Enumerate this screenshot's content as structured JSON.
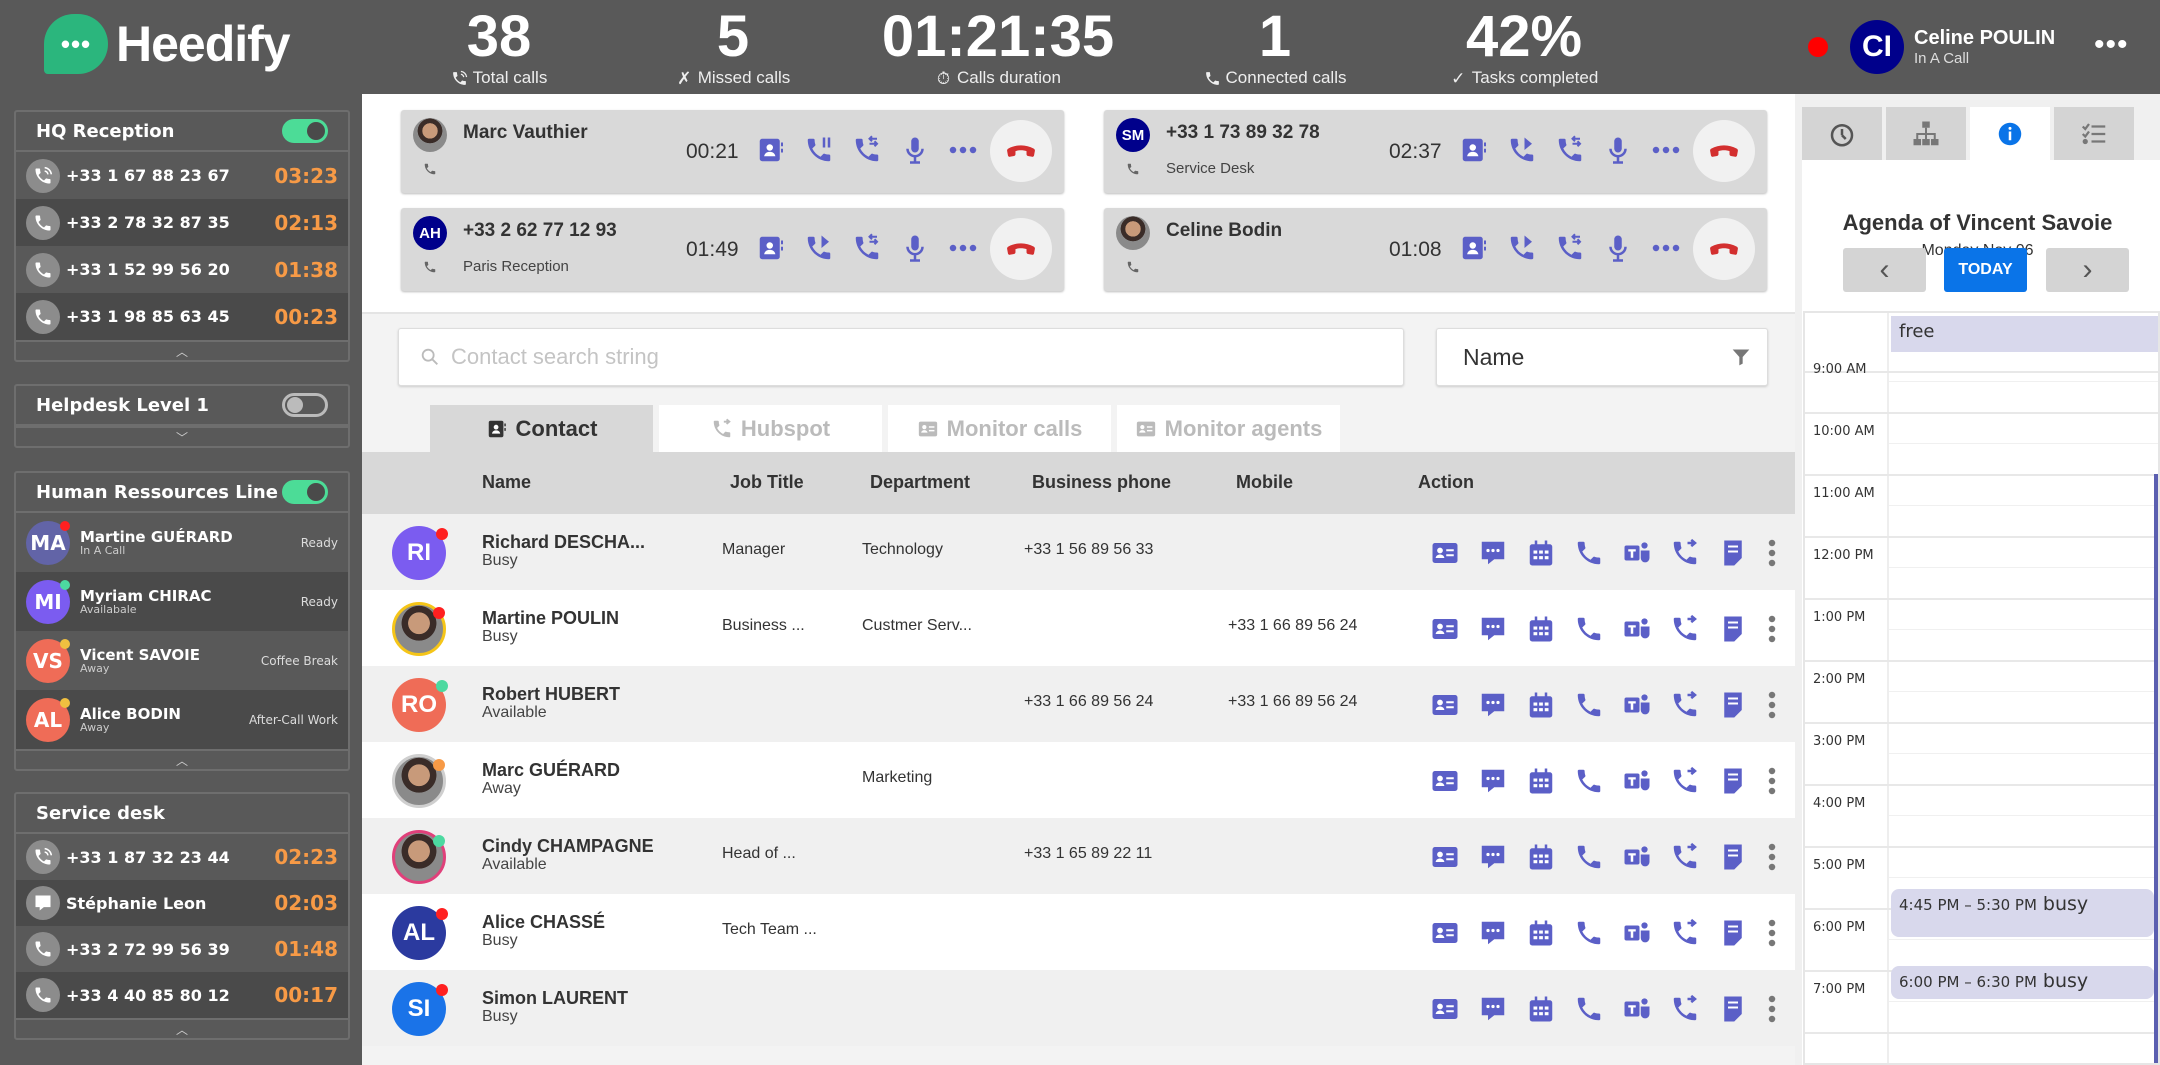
{
  "header": {
    "logo_text": "Heedify",
    "stats": [
      {
        "value": "38",
        "label": "Total calls",
        "icon": "phone-ring-icon"
      },
      {
        "value": "5",
        "label": "Missed calls",
        "icon": "missed-call-icon"
      },
      {
        "value": "01:21:35",
        "label": "Calls duration",
        "icon": "timer-icon"
      },
      {
        "value": "1",
        "label": "Connected calls",
        "icon": "phone-connected-icon"
      },
      {
        "value": "42%",
        "label": "Tasks completed",
        "icon": "check-icon"
      }
    ],
    "user": {
      "initials": "CI",
      "name": "Celine POULIN",
      "status": "In A Call",
      "status_color": "#ff0000",
      "more": "•••"
    }
  },
  "queues": [
    {
      "title": "HQ Reception",
      "toggle": "on",
      "type": "calls",
      "expanded": true,
      "items": [
        {
          "icon": "phone-ring",
          "label": "+33 1 67 88 23 67",
          "time": "03:23"
        },
        {
          "icon": "phone",
          "label": "+33 2 78 32 87 35",
          "time": "02:13"
        },
        {
          "icon": "phone",
          "label": "+33 1 52 99 56 20",
          "time": "01:38"
        },
        {
          "icon": "phone",
          "label": "+33 1 98 85 63 45",
          "time": "00:23"
        }
      ]
    },
    {
      "title": "Helpdesk Level 1",
      "toggle": "off",
      "type": "calls",
      "expanded": false,
      "items": []
    },
    {
      "title": "Human Ressources Line",
      "toggle": "on",
      "type": "agents",
      "expanded": true,
      "items": [
        {
          "initials": "MA",
          "name": "Martine GUÉRARD",
          "status": "In A Call",
          "state": "Ready",
          "color": "#6264a7",
          "dot": "#ff2020"
        },
        {
          "initials": "MI",
          "name": "Myriam CHIRAC",
          "status": "Availabale",
          "state": "Ready",
          "color": "#7b5cf0",
          "dot": "#4cd9a0"
        },
        {
          "initials": "VS",
          "name": "Vicent SAVOIE",
          "status": "Away",
          "state": "Coffee Break",
          "color": "#ef6c57",
          "dot": "#f0c040"
        },
        {
          "initials": "AL",
          "name": "Alice BODIN",
          "status": "Away",
          "state": "After-Call Work",
          "color": "#ef6c57",
          "dot": "#f0c040"
        }
      ]
    },
    {
      "title": "Service desk",
      "toggle": "none",
      "type": "calls",
      "expanded": true,
      "items": [
        {
          "icon": "phone-ring",
          "label": "+33 1 87 32 23 44",
          "time": "02:23"
        },
        {
          "icon": "chat",
          "label": "Stéphanie Leon",
          "time": "02:03"
        },
        {
          "icon": "phone",
          "label": "+33 2 72 99 56 39",
          "time": "01:48"
        },
        {
          "icon": "phone",
          "label": "+33 4 40 85 80 12",
          "time": "00:17"
        }
      ]
    }
  ],
  "active_calls": [
    {
      "name": "Marc Vauthier",
      "avatar": "photo",
      "initials": "",
      "sub": "",
      "time": "00:21",
      "buttons": [
        "contact-card",
        "hold",
        "transfer",
        "mic",
        "more"
      ]
    },
    {
      "name": "+33 1 73 89 32 78",
      "avatar": "initials",
      "initials": "SM",
      "sub": "Service Desk",
      "time": "02:37",
      "buttons": [
        "contact-card",
        "call-forward",
        "transfer",
        "mic",
        "more"
      ]
    },
    {
      "name": "+33 2 62 77 12 93",
      "avatar": "initials",
      "initials": "AH",
      "sub": "Paris Reception",
      "time": "01:49",
      "buttons": [
        "contact-card",
        "call-forward",
        "transfer",
        "mic",
        "more"
      ]
    },
    {
      "name": "Celine Bodin",
      "avatar": "photo",
      "initials": "",
      "sub": "",
      "time": "01:08",
      "buttons": [
        "contact-card",
        "call-forward",
        "transfer",
        "mic",
        "more"
      ]
    }
  ],
  "search": {
    "placeholder": "Contact search string",
    "filter_value": "Name"
  },
  "tabs": [
    {
      "label": "Contact",
      "icon": "contact-book-icon",
      "active": true
    },
    {
      "label": "Hubspot",
      "icon": "hubspot-icon",
      "active": false
    },
    {
      "label": "Monitor calls",
      "icon": "monitor-calls-icon",
      "active": false
    },
    {
      "label": "Monitor agents",
      "icon": "monitor-agents-icon",
      "active": false
    }
  ],
  "contacts": {
    "columns": [
      "Name",
      "Job Title",
      "Department",
      "Business phone",
      "Mobile",
      "Action"
    ],
    "rows": [
      {
        "initials": "RI",
        "avatar_color": "#7b5cf0",
        "photo": false,
        "dot": "#ff2020",
        "name": "Richard DESCHA...",
        "status": "Busy",
        "job": "Manager",
        "dept": "Technology",
        "business": "+33 1 56 89 56 33",
        "mobile": ""
      },
      {
        "initials": "",
        "avatar_color": "#f5c518",
        "photo": true,
        "dot": "#ff2020",
        "name": "Martine POULIN",
        "status": "Busy",
        "job": "Business ...",
        "dept": "Custmer Serv...",
        "business": "",
        "mobile": "+33 1 66 89 56 24"
      },
      {
        "initials": "RO",
        "avatar_color": "#ef6c57",
        "photo": false,
        "dot": "#4cd9a0",
        "name": "Robert HUBERT",
        "status": "Available",
        "job": "",
        "dept": "",
        "business": "+33 1 66 89 56 24",
        "mobile": "+33 1 66 89 56 24"
      },
      {
        "initials": "",
        "avatar_color": "#cfcfcf",
        "photo": true,
        "dot": "#f79a46",
        "name": "Marc GUÉRARD",
        "status": "Away",
        "job": "",
        "dept": "Marketing",
        "business": "",
        "mobile": ""
      },
      {
        "initials": "",
        "avatar_color": "#e0407a",
        "photo": true,
        "dot": "#4cd9a0",
        "name": "Cindy CHAMPAGNE",
        "status": "Available",
        "job": "Head of ...",
        "dept": "",
        "business": "+33 1 65 89 22 11",
        "mobile": ""
      },
      {
        "initials": "AL",
        "avatar_color": "#2b3a9f",
        "photo": false,
        "dot": "#ff2020",
        "name": "Alice CHASSÉ",
        "status": "Busy",
        "job": "Tech Team ...",
        "dept": "",
        "business": "",
        "mobile": ""
      },
      {
        "initials": "SI",
        "avatar_color": "#1a73e8",
        "photo": false,
        "dot": "#ff2020",
        "name": "Simon LAURENT",
        "status": "Busy",
        "job": "",
        "dept": "",
        "business": "",
        "mobile": ""
      }
    ],
    "actions": [
      "contact-card",
      "chat",
      "calendar",
      "call",
      "teams",
      "transfer",
      "note",
      "more"
    ]
  },
  "right_panel": {
    "tabs": [
      {
        "icon": "history-icon",
        "active": false
      },
      {
        "icon": "org-chart-icon",
        "active": false
      },
      {
        "icon": "info-icon",
        "active": true
      },
      {
        "icon": "checklist-icon",
        "active": false
      }
    ],
    "agenda_title": "Agenda of Vincent Savoie",
    "agenda_date": "Monday Nov 06",
    "today_label": "TODAY",
    "prev_label": "‹",
    "next_label": "›",
    "all_day": "free",
    "hours": [
      "9:00 AM",
      "10:00 AM",
      "11:00 AM",
      "12:00 PM",
      "1:00 PM",
      "2:00 PM",
      "3:00 PM",
      "4:00 PM",
      "5:00 PM",
      "6:00 PM",
      "7:00 PM"
    ],
    "events": [
      {
        "start": "4:45 PM",
        "end": "5:30 PM",
        "range": "4:45 PM – 5:30 PM",
        "label": "busy"
      },
      {
        "start": "6:00 PM",
        "end": "6:30 PM",
        "range": "6:00 PM – 6:30 PM",
        "label": "busy"
      }
    ]
  },
  "colors": {
    "accent": "#5b5fc7",
    "brand": "#2bb67d",
    "timer": "#f79a46",
    "hangup": "#d32f2f",
    "today": "#0a74e8"
  }
}
